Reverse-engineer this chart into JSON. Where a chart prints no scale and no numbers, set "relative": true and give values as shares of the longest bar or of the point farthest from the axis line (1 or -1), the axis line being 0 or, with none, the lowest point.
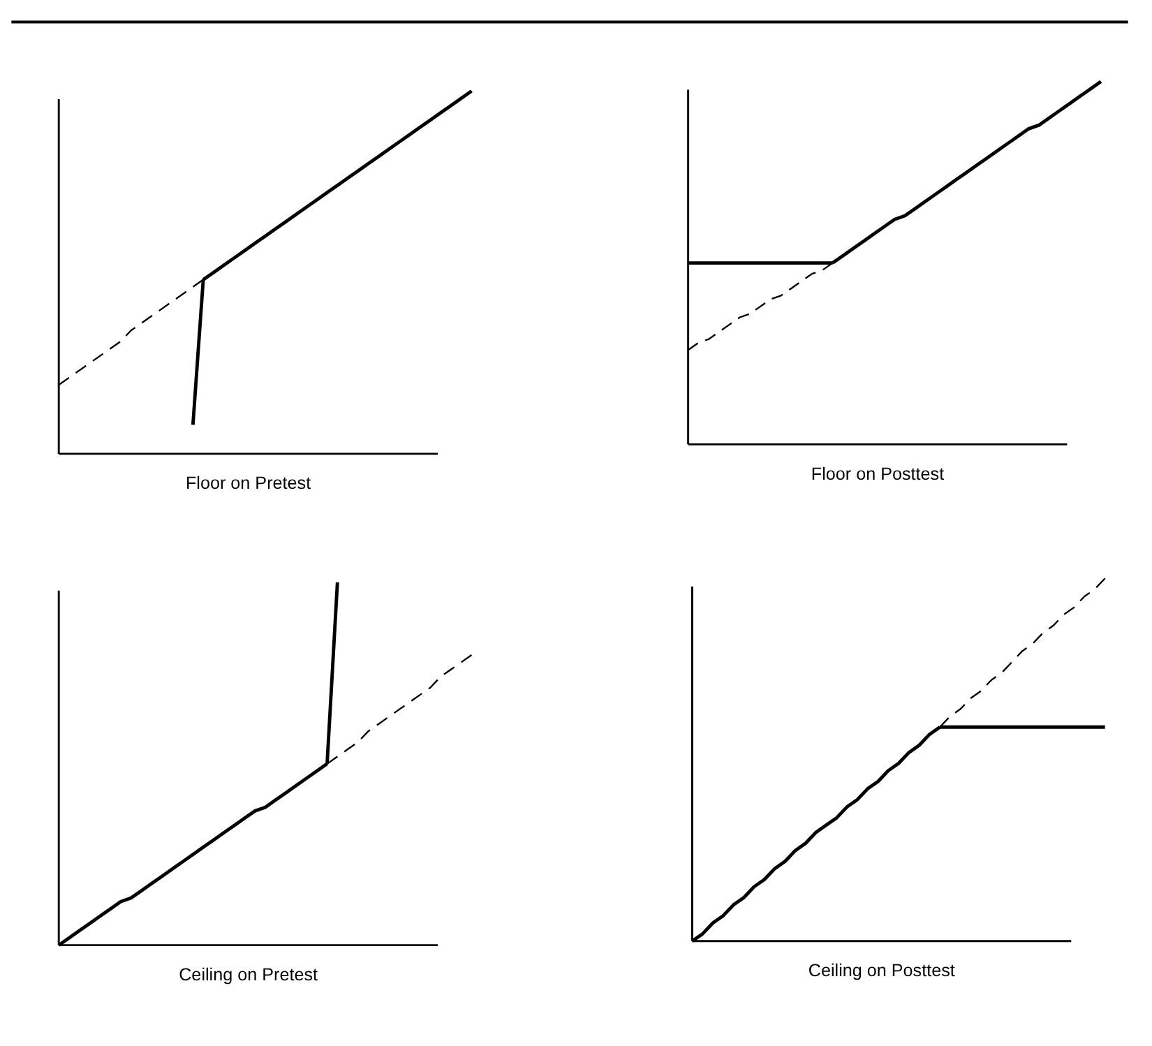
{
  "chart_data": [
    {
      "type": "line",
      "xlabel": "Floor on Pretest",
      "relative": true,
      "tick_labels": false,
      "legend": false,
      "grid": false,
      "categories": [
        null,
        null,
        null,
        null,
        null,
        null,
        null,
        null,
        null,
        null,
        null,
        null,
        null,
        null,
        null,
        null,
        null,
        null,
        null,
        null,
        null,
        null,
        null,
        null,
        null,
        null,
        null,
        null,
        null,
        null,
        null,
        null,
        null,
        null,
        null,
        null,
        null,
        null,
        null,
        null,
        null
      ],
      "series": [
        {
          "color": "#000000",
          "line_style": "dashed",
          "values": [
            0.19,
            0.21,
            0.23,
            0.25,
            0.27,
            0.29,
            0.31,
            0.34,
            0.36,
            0.38,
            0.4,
            0.42,
            0.44,
            0.46,
            0.48,
            null,
            null,
            null,
            null,
            null,
            null,
            null,
            null,
            null,
            null,
            null,
            null,
            null,
            null,
            null,
            null,
            null,
            null,
            null,
            null,
            null,
            null,
            null,
            null,
            null,
            null
          ]
        },
        {
          "color": "#000000",
          "line_style": "solid",
          "values": [
            null,
            null,
            null,
            null,
            null,
            null,
            null,
            null,
            null,
            null,
            null,
            null,
            null,
            null,
            0.48,
            0.5,
            0.52,
            0.54,
            0.56,
            0.58,
            0.6,
            0.62,
            0.64,
            0.66,
            0.68,
            0.7,
            0.72,
            0.74,
            0.76,
            0.78,
            0.8,
            0.82,
            0.84,
            0.86,
            0.88,
            0.9,
            0.92,
            0.94,
            0.96,
            0.98,
            1.0
          ]
        },
        {
          "color": "#000000",
          "line_style": "solid",
          "values": [
            null,
            null,
            null,
            null,
            null,
            null,
            null,
            null,
            null,
            null,
            null,
            null,
            null,
            0.08,
            0.48,
            null,
            null,
            null,
            null,
            null,
            null,
            null,
            null,
            null,
            null,
            null,
            null,
            null,
            null,
            null,
            null,
            null,
            null,
            null,
            null,
            null,
            null,
            null,
            null,
            null,
            null
          ]
        }
      ]
    },
    {
      "type": "line",
      "xlabel": "Floor on Posttest",
      "relative": true,
      "tick_labels": false,
      "legend": false,
      "grid": false,
      "categories": [
        null,
        null,
        null,
        null,
        null,
        null,
        null,
        null,
        null,
        null,
        null,
        null,
        null,
        null,
        null,
        null,
        null,
        null,
        null,
        null,
        null,
        null,
        null,
        null,
        null,
        null,
        null,
        null,
        null,
        null,
        null,
        null,
        null,
        null,
        null,
        null,
        null,
        null,
        null,
        null,
        null
      ],
      "series": [
        {
          "color": "#000000",
          "line_style": "dashed",
          "values": [
            0.26,
            0.28,
            0.29,
            0.31,
            0.33,
            0.35,
            0.36,
            0.38,
            0.4,
            0.41,
            0.43,
            0.45,
            0.47,
            0.48,
            0.5,
            null,
            null,
            null,
            null,
            null,
            null,
            null,
            null,
            null,
            null,
            null,
            null,
            null,
            null,
            null,
            null,
            null,
            null,
            null,
            null,
            null,
            null,
            null,
            null,
            null,
            null
          ]
        },
        {
          "color": "#000000",
          "line_style": "solid",
          "values": [
            0.5,
            0.5,
            0.5,
            0.5,
            0.5,
            0.5,
            0.5,
            0.5,
            0.5,
            0.5,
            0.5,
            0.5,
            0.5,
            0.5,
            0.5,
            null,
            null,
            null,
            null,
            null,
            null,
            null,
            null,
            null,
            null,
            null,
            null,
            null,
            null,
            null,
            null,
            null,
            null,
            null,
            null,
            null,
            null,
            null,
            null,
            null,
            null
          ]
        },
        {
          "color": "#000000",
          "line_style": "solid",
          "values": [
            null,
            null,
            null,
            null,
            null,
            null,
            null,
            null,
            null,
            null,
            null,
            null,
            null,
            null,
            0.5,
            0.52,
            0.54,
            0.56,
            0.58,
            0.6,
            0.62,
            0.63,
            0.65,
            0.67,
            0.69,
            0.71,
            0.73,
            0.75,
            0.77,
            0.79,
            0.81,
            0.83,
            0.85,
            0.87,
            0.88,
            0.9,
            0.92,
            0.94,
            0.96,
            0.98,
            1.0
          ]
        }
      ]
    },
    {
      "type": "line",
      "xlabel": "Ceiling on Pretest",
      "relative": true,
      "tick_labels": false,
      "legend": false,
      "grid": false,
      "categories": [
        null,
        null,
        null,
        null,
        null,
        null,
        null,
        null,
        null,
        null,
        null,
        null,
        null,
        null,
        null,
        null,
        null,
        null,
        null,
        null,
        null,
        null,
        null,
        null,
        null,
        null,
        null,
        null,
        null,
        null,
        null,
        null,
        null,
        null,
        null,
        null,
        null,
        null,
        null,
        null,
        null
      ],
      "series": [
        {
          "color": "#000000",
          "line_style": "solid",
          "values": [
            0,
            0.02,
            0.04,
            0.06,
            0.08,
            0.1,
            0.12,
            0.13,
            0.15,
            0.17,
            0.19,
            0.21,
            0.23,
            0.25,
            0.27,
            0.29,
            0.31,
            0.33,
            0.35,
            0.37,
            0.38,
            0.4,
            0.42,
            0.44,
            0.46,
            0.48,
            0.5,
            null,
            null,
            null,
            null,
            null,
            null,
            null,
            null,
            null,
            null,
            null,
            null,
            null,
            null
          ]
        },
        {
          "color": "#000000",
          "line_style": "dashed",
          "values": [
            null,
            null,
            null,
            null,
            null,
            null,
            null,
            null,
            null,
            null,
            null,
            null,
            null,
            null,
            null,
            null,
            null,
            null,
            null,
            null,
            null,
            null,
            null,
            null,
            null,
            null,
            0.5,
            0.52,
            0.54,
            0.56,
            0.59,
            0.61,
            0.63,
            0.65,
            0.67,
            0.69,
            0.71,
            0.74,
            0.76,
            0.78,
            0.8
          ]
        },
        {
          "color": "#000000",
          "line_style": "solid",
          "values": [
            null,
            null,
            null,
            null,
            null,
            null,
            null,
            null,
            null,
            null,
            null,
            null,
            null,
            null,
            null,
            null,
            null,
            null,
            null,
            null,
            null,
            null,
            null,
            null,
            null,
            null,
            0.5,
            1.0,
            null,
            null,
            null,
            null,
            null,
            null,
            null,
            null,
            null,
            null,
            null,
            null,
            null
          ]
        }
      ]
    },
    {
      "type": "line",
      "xlabel": "Ceiling on Posttest",
      "relative": true,
      "tick_labels": false,
      "legend": false,
      "grid": false,
      "categories": [
        null,
        null,
        null,
        null,
        null,
        null,
        null,
        null,
        null,
        null,
        null,
        null,
        null,
        null,
        null,
        null,
        null,
        null,
        null,
        null,
        null,
        null,
        null,
        null,
        null,
        null,
        null,
        null,
        null,
        null,
        null,
        null,
        null,
        null,
        null,
        null,
        null,
        null,
        null,
        null,
        null
      ],
      "series": [
        {
          "color": "#000000",
          "line_style": "solid",
          "values": [
            0,
            0.02,
            0.05,
            0.07,
            0.1,
            0.12,
            0.15,
            0.17,
            0.2,
            0.22,
            0.25,
            0.27,
            0.3,
            0.32,
            0.34,
            0.37,
            0.39,
            0.42,
            0.44,
            0.47,
            0.49,
            0.52,
            0.54,
            0.57,
            0.59,
            null,
            null,
            null,
            null,
            null,
            null,
            null,
            null,
            null,
            null,
            null,
            null,
            null,
            null,
            null,
            null
          ]
        },
        {
          "color": "#000000",
          "line_style": "solid",
          "values": [
            null,
            null,
            null,
            null,
            null,
            null,
            null,
            null,
            null,
            null,
            null,
            null,
            null,
            null,
            null,
            null,
            null,
            null,
            null,
            null,
            null,
            null,
            null,
            null,
            0.59,
            0.59,
            0.59,
            0.59,
            0.59,
            0.59,
            0.59,
            0.59,
            0.59,
            0.59,
            0.59,
            0.59,
            0.59,
            0.59,
            0.59,
            0.59,
            0.59
          ]
        },
        {
          "color": "#000000",
          "line_style": "dashed",
          "values": [
            null,
            null,
            null,
            null,
            null,
            null,
            null,
            null,
            null,
            null,
            null,
            null,
            null,
            null,
            null,
            null,
            null,
            null,
            null,
            null,
            null,
            null,
            null,
            null,
            0.59,
            0.62,
            0.64,
            0.67,
            0.69,
            0.72,
            0.74,
            0.77,
            0.8,
            0.82,
            0.85,
            0.87,
            0.9,
            0.92,
            0.95,
            0.97,
            1.0
          ]
        }
      ]
    }
  ]
}
